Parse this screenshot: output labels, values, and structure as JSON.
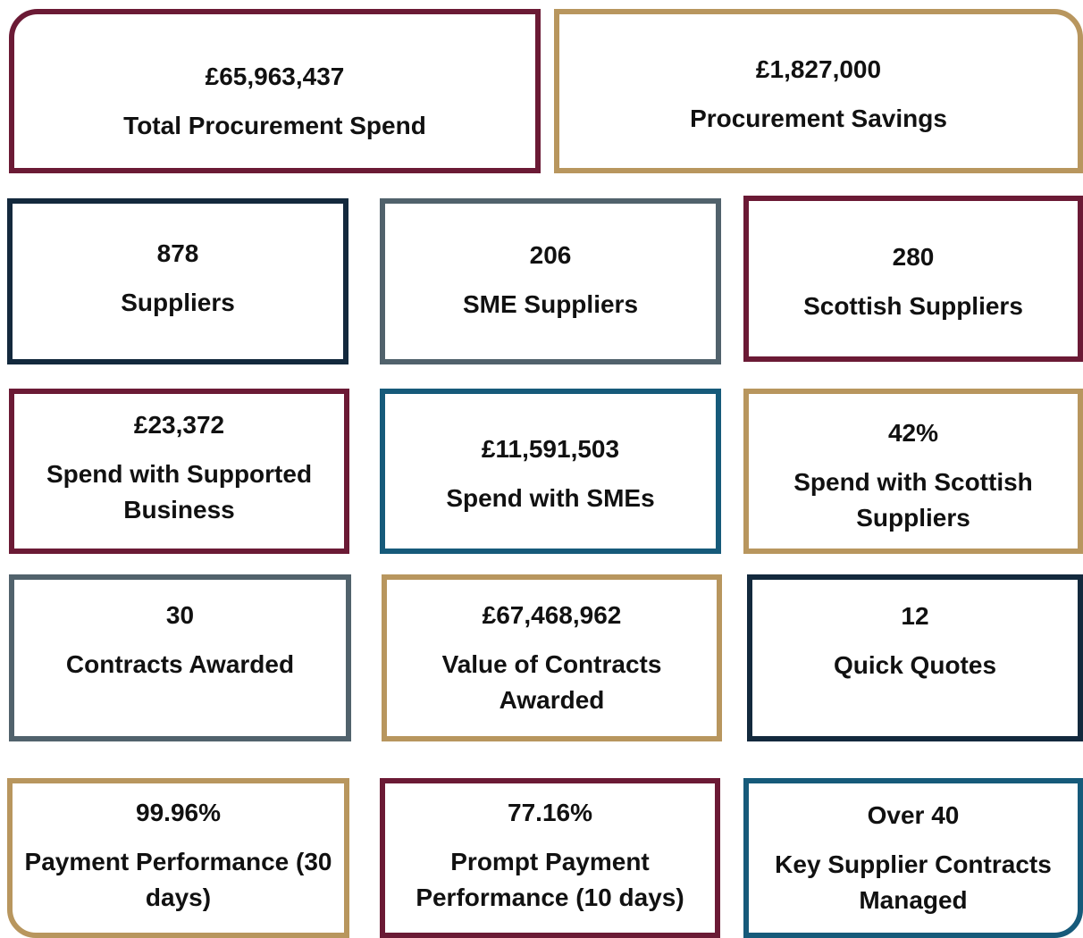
{
  "tiles": [
    {
      "value": "£65,963,437",
      "label": "Total Procurement Spend",
      "color": "#6b1a35"
    },
    {
      "value": "£1,827,000",
      "label": "Procurement Savings",
      "color": "#b8965e"
    },
    {
      "value": "878",
      "label": "Suppliers",
      "color": "#13293d"
    },
    {
      "value": "206",
      "label": "SME Suppliers",
      "color": "#51626c"
    },
    {
      "value": "280",
      "label": "Scottish Suppliers",
      "color": "#6b1a35"
    },
    {
      "value": "£23,372",
      "label": "Spend with Supported Business",
      "color": "#6b1a35"
    },
    {
      "value": "£11,591,503",
      "label": "Spend with SMEs",
      "color": "#165a7a"
    },
    {
      "value": "42%",
      "label": "Spend with Scottish Suppliers",
      "color": "#b8965e"
    },
    {
      "value": "30",
      "label": "Contracts Awarded",
      "color": "#51626c"
    },
    {
      "value": "£67,468,962",
      "label": "Value of Contracts Awarded",
      "color": "#b8965e"
    },
    {
      "value": "12",
      "label": "Quick Quotes",
      "color": "#13293d"
    },
    {
      "value": "99.96%",
      "label": "Payment Performance (30 days)",
      "color": "#b8965e"
    },
    {
      "value": "77.16%",
      "label": "Prompt Payment Performance (10 days)",
      "color": "#6b1a35"
    },
    {
      "value": "Over 40",
      "label": "Key Supplier Contracts Managed",
      "color": "#165a7a"
    }
  ]
}
